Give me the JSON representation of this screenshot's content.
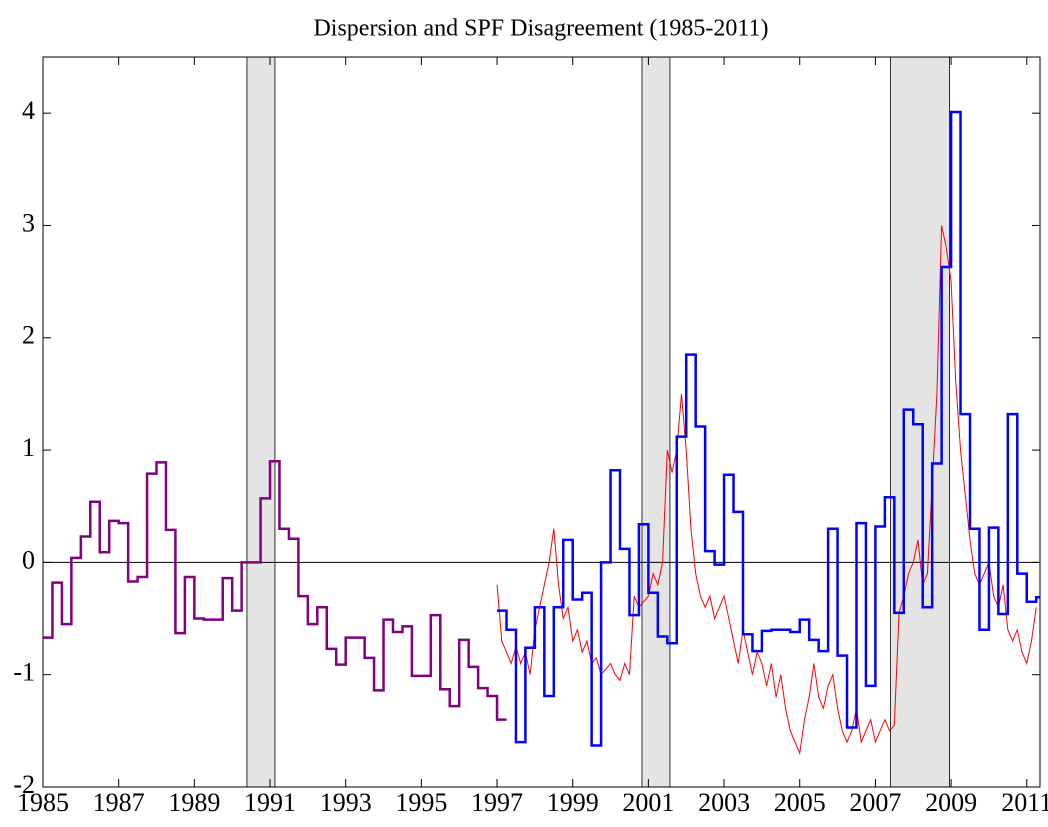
{
  "chart_data": {
    "type": "line",
    "title": "Dispersion and SPF Disagreement (1985-2011)",
    "xlim": [
      1985,
      2011.35
    ],
    "ylim": [
      -2,
      4.5
    ],
    "xticks": [
      1985,
      1987,
      1989,
      1991,
      1993,
      1995,
      1997,
      1999,
      2001,
      2003,
      2005,
      2007,
      2009,
      2011
    ],
    "yticks": [
      -2,
      -1,
      0,
      1,
      2,
      3,
      4
    ],
    "zero_line": true,
    "shading": [
      [
        1990.39,
        1991.13
      ],
      [
        2000.83,
        2001.57
      ],
      [
        2007.4,
        2008.96
      ]
    ],
    "series": [
      {
        "color": "#800080",
        "step": true,
        "step_width": 0.25,
        "x": [
          1985,
          1985.25,
          1985.5,
          1985.75,
          1986,
          1986.25,
          1986.5,
          1986.75,
          1987,
          1987.25,
          1987.5,
          1987.75,
          1988,
          1988.25,
          1988.5,
          1988.75,
          1989,
          1989.25,
          1989.5,
          1989.75,
          1990,
          1990.25,
          1990.5,
          1990.75,
          1991,
          1991.25,
          1991.5,
          1991.75,
          1992,
          1992.25,
          1992.5,
          1992.75,
          1993,
          1993.25,
          1993.5,
          1993.75,
          1994,
          1994.25,
          1994.5,
          1994.75,
          1995,
          1995.25,
          1995.5,
          1995.75,
          1996,
          1996.25,
          1996.5,
          1996.75,
          1997
        ],
        "values": [
          -0.67,
          -0.18,
          -0.55,
          0.04,
          0.23,
          0.54,
          0.09,
          0.37,
          0.35,
          -0.17,
          -0.13,
          0.79,
          0.89,
          0.29,
          -0.63,
          -0.13,
          -0.5,
          -0.51,
          -0.51,
          -0.14,
          -0.43,
          0,
          0,
          0.57,
          0.9,
          0.3,
          0.21,
          -0.3,
          -0.55,
          -0.4,
          -0.77,
          -0.91,
          -0.67,
          -0.67,
          -0.85,
          -1.14,
          -0.51,
          -0.62,
          -0.57,
          -1.01,
          -1.01,
          -0.47,
          -1.13,
          -1.28,
          -0.69,
          -0.93,
          -1.12,
          -1.19,
          -1.4
        ]
      },
      {
        "color": "#0000ff",
        "step": true,
        "step_width": 0.25,
        "x": [
          1997,
          1997.25,
          1997.5,
          1997.75,
          1998,
          1998.25,
          1998.5,
          1998.75,
          1999,
          1999.25,
          1999.5,
          1999.75,
          2000,
          2000.25,
          2000.5,
          2000.75,
          2001,
          2001.25,
          2001.5,
          2001.75,
          2002,
          2002.25,
          2002.5,
          2002.75,
          2003,
          2003.25,
          2003.5,
          2003.75,
          2004,
          2004.25,
          2004.5,
          2004.75,
          2005,
          2005.25,
          2005.5,
          2005.75,
          2006,
          2006.25,
          2006.5,
          2006.75,
          2007,
          2007.25,
          2007.5,
          2007.75,
          2008,
          2008.25,
          2008.5,
          2008.75,
          2009,
          2009.25,
          2009.5,
          2009.75,
          2010,
          2010.25,
          2010.5,
          2010.75,
          2011,
          2011.25
        ],
        "values": [
          -0.43,
          -0.6,
          -1.6,
          -0.76,
          -0.4,
          -1.19,
          -0.4,
          0.2,
          -0.33,
          -0.27,
          -1.63,
          0,
          0.82,
          0.12,
          -0.47,
          0.34,
          -0.27,
          -0.66,
          -0.72,
          1.12,
          1.85,
          1.21,
          0.1,
          -0.02,
          0.78,
          0.45,
          -0.64,
          -0.79,
          -0.61,
          -0.6,
          -0.6,
          -0.62,
          -0.51,
          -0.69,
          -0.79,
          0.3,
          -0.83,
          -1.47,
          0.35,
          -1.1,
          0.32,
          0.58,
          -0.45,
          1.36,
          1.23,
          -0.4,
          0.88,
          2.63,
          4.01,
          1.32,
          0.3,
          -0.6,
          0.31,
          -0.46,
          1.32,
          -0.1,
          -0.35,
          -0.31
        ]
      },
      {
        "color": "#ff0000",
        "step": false,
        "x": [
          1997,
          1997.125,
          1997.25,
          1997.375,
          1997.5,
          1997.625,
          1997.75,
          1997.875,
          1998,
          1998.125,
          1998.25,
          1998.375,
          1998.5,
          1998.625,
          1998.75,
          1998.875,
          1999,
          1999.125,
          1999.25,
          1999.375,
          1999.5,
          1999.625,
          1999.75,
          1999.875,
          2000,
          2000.125,
          2000.25,
          2000.375,
          2000.5,
          2000.625,
          2000.75,
          2000.875,
          2001,
          2001.125,
          2001.25,
          2001.375,
          2001.5,
          2001.625,
          2001.75,
          2001.875,
          2002,
          2002.125,
          2002.25,
          2002.375,
          2002.5,
          2002.625,
          2002.75,
          2002.875,
          2003,
          2003.125,
          2003.25,
          2003.375,
          2003.5,
          2003.625,
          2003.75,
          2003.875,
          2004,
          2004.125,
          2004.25,
          2004.375,
          2004.5,
          2004.625,
          2004.75,
          2004.875,
          2005,
          2005.125,
          2005.25,
          2005.375,
          2005.5,
          2005.625,
          2005.75,
          2005.875,
          2006,
          2006.125,
          2006.25,
          2006.375,
          2006.5,
          2006.625,
          2006.75,
          2006.875,
          2007,
          2007.125,
          2007.25,
          2007.375,
          2007.5,
          2007.625,
          2007.75,
          2007.875,
          2008,
          2008.125,
          2008.25,
          2008.375,
          2008.5,
          2008.625,
          2008.75,
          2008.875,
          2009,
          2009.125,
          2009.25,
          2009.375,
          2009.5,
          2009.625,
          2009.75,
          2009.875,
          2010,
          2010.125,
          2010.25,
          2010.375,
          2010.5,
          2010.625,
          2010.75,
          2010.875,
          2011,
          2011.125,
          2011.25
        ],
        "values": [
          -0.2,
          -0.7,
          -0.8,
          -0.9,
          -0.75,
          -0.9,
          -0.8,
          -1.0,
          -0.6,
          -0.4,
          -0.2,
          0.0,
          0.3,
          -0.2,
          -0.5,
          -0.4,
          -0.7,
          -0.6,
          -0.8,
          -0.7,
          -0.9,
          -0.85,
          -1.0,
          -0.95,
          -0.9,
          -1.0,
          -1.05,
          -0.9,
          -1.0,
          -0.3,
          -0.4,
          -0.35,
          -0.3,
          -0.1,
          -0.2,
          0.0,
          1.0,
          0.8,
          1.0,
          1.5,
          1.0,
          0.3,
          -0.1,
          -0.3,
          -0.4,
          -0.3,
          -0.5,
          -0.4,
          -0.3,
          -0.5,
          -0.7,
          -0.9,
          -0.6,
          -0.8,
          -1.0,
          -0.8,
          -0.9,
          -1.1,
          -0.9,
          -1.2,
          -1.0,
          -1.3,
          -1.5,
          -1.6,
          -1.7,
          -1.4,
          -1.2,
          -0.9,
          -1.2,
          -1.3,
          -1.1,
          -1.0,
          -1.3,
          -1.5,
          -1.6,
          -1.5,
          -1.3,
          -1.6,
          -1.5,
          -1.4,
          -1.6,
          -1.5,
          -1.4,
          -1.5,
          -1.45,
          -0.45,
          -0.3,
          -0.1,
          0.0,
          0.2,
          -0.2,
          -0.1,
          0.7,
          1.5,
          3.0,
          2.8,
          2.5,
          1.6,
          1.0,
          0.6,
          0.2,
          -0.1,
          -0.2,
          -0.1,
          0.0,
          -0.3,
          -0.4,
          -0.2,
          -0.6,
          -0.7,
          -0.6,
          -0.8,
          -0.9,
          -0.7,
          -0.4
        ]
      }
    ]
  }
}
